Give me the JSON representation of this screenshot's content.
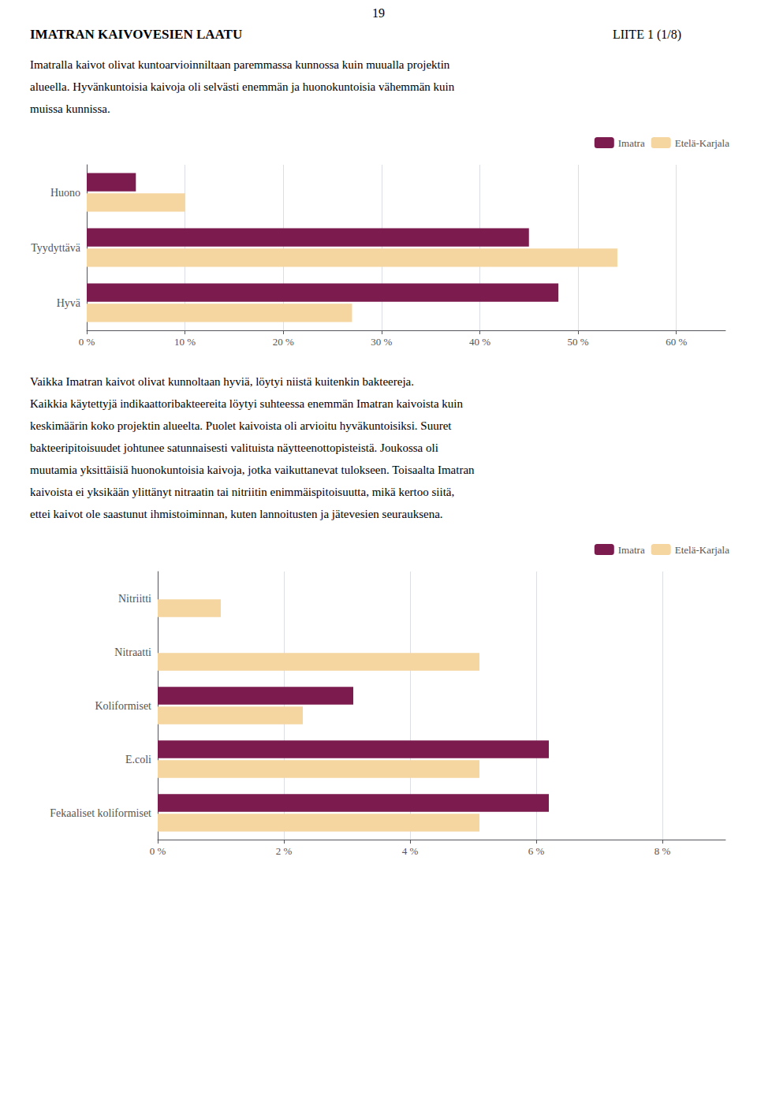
{
  "chart_data": [
    {
      "type": "bar",
      "orientation": "horizontal",
      "title": "IMATRAN KAIVOVESIEN LAATU",
      "annotations": [
        "19",
        "LIITE 1 (1/8)",
        "Imatralla kaivot olivat kuntoarvioinniltaan paremmassa kunnossa kuin muualla projektin",
        "alueella. Hyvänkuntoisia kaivoja oli selvästi enemmän ja huonokuntoisia vähemmän kuin",
        "muissa kunnissa."
      ],
      "categories": [
        "Hyvä",
        "Tyydyttävä",
        "Huono"
      ],
      "series": [
        {
          "name": "Imatra",
          "color": "#7B1B4E",
          "values": [
            0.48,
            0.45,
            0.05
          ]
        },
        {
          "name": "Etelä-Karjala",
          "color": "#F5D5A0",
          "values": [
            0.27,
            0.54,
            0.1
          ]
        }
      ],
      "xlim": [
        0,
        0.65
      ],
      "xticks": [
        {
          "value": 0.0,
          "label": "0 %"
        },
        {
          "value": 0.1,
          "label": "10 %"
        },
        {
          "value": 0.2,
          "label": "20 %"
        },
        {
          "value": 0.3,
          "label": "30 %"
        },
        {
          "value": 0.4,
          "label": "40 %"
        },
        {
          "value": 0.5,
          "label": "50 %"
        },
        {
          "value": 0.6,
          "label": "60 %"
        }
      ],
      "grid": true,
      "legend": "upper right"
    },
    {
      "type": "bar",
      "orientation": "horizontal",
      "annotations": [
        "Vaikka Imatran kaivot olivat kunnoltaan hyviä, löytyi niistä kuitenkin bakteereja.",
        "Kaikkia käytettyjä indikaattoribakteereita löytyi suhteessa enemmän Imatran kaivoista kuin",
        "keskimäärin koko projektin alueelta. Puolet kaivoista oli arvioitu hyväkuntoisiksi. Suuret",
        "bakteeripitoisuudet johtunee satunnaisesti valituista näytteenottopisteistä. Joukossa oli",
        "muutamia yksittäisiä huonokuntoisia kaivoja, jotka vaikuttanevat tulokseen. Toisaalta Imatran",
        "kaivoista ei yksikään ylittänyt nitraatin tai nitriitin enimmäispitoisuutta, mikä kertoo siitä,",
        "ettei kaivot ole saastunut ihmistoiminnan, kuten lannoitusten ja jätevesien seurauksena."
      ],
      "categories": [
        "Fekaaliset koliformiset",
        "E.coli",
        "Koliformiset",
        "Nitraatti",
        "Nitriitti"
      ],
      "series": [
        {
          "name": "Imatra",
          "color": "#7B1B4E",
          "values": [
            0.062,
            0.062,
            0.031,
            0.0,
            0.0
          ]
        },
        {
          "name": "Etelä-Karjala",
          "color": "#F5D5A0",
          "values": [
            0.051,
            0.051,
            0.023,
            0.051,
            0.01
          ]
        }
      ],
      "xlim": [
        0,
        0.09
      ],
      "xticks": [
        {
          "value": 0.0,
          "label": "0 %"
        },
        {
          "value": 0.02,
          "label": "2 %"
        },
        {
          "value": 0.04,
          "label": "4 %"
        },
        {
          "value": 0.06,
          "label": "6 %"
        },
        {
          "value": 0.08,
          "label": "8 %"
        }
      ],
      "grid": true,
      "legend": "upper right"
    }
  ]
}
